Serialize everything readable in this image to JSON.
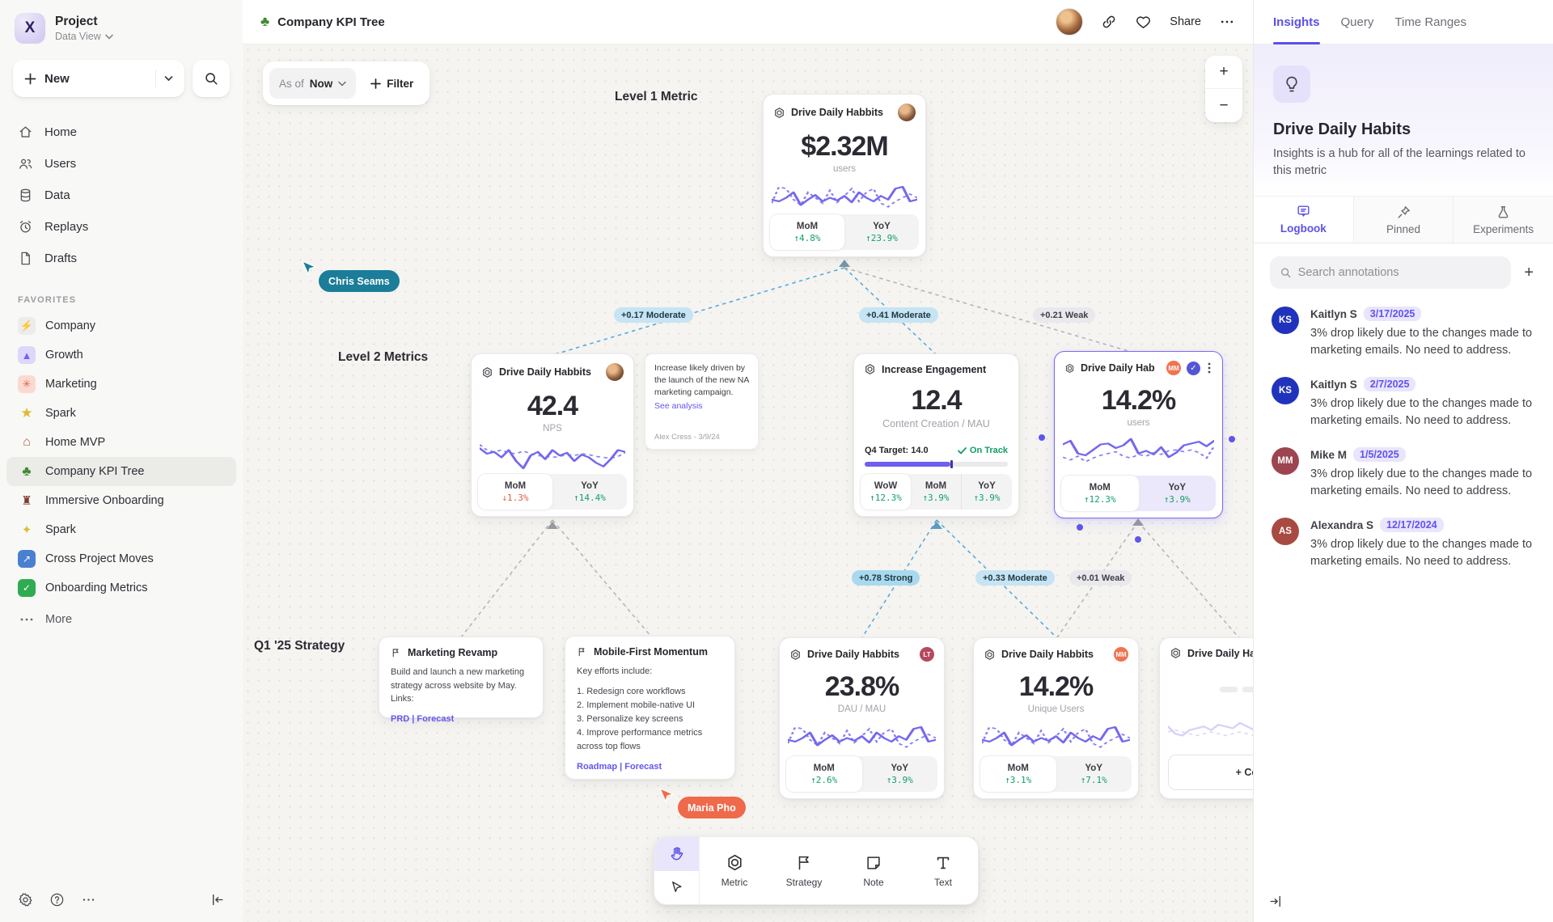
{
  "colors": {
    "accent": "#5b51e8",
    "spark": "#7468ee",
    "green": "#13a06a",
    "red": "#e05c41",
    "teal": "#1b7d99",
    "coral": "#ee6a4b"
  },
  "sidebar": {
    "project_name": "Project",
    "project_view": "Data View",
    "new_label": "New",
    "nav": [
      {
        "label": "Home"
      },
      {
        "label": "Users"
      },
      {
        "label": "Data"
      },
      {
        "label": "Replays"
      },
      {
        "label": "Drafts"
      }
    ],
    "favorites_header": "FAVORITES",
    "favorites": [
      {
        "label": "Company",
        "glyph": "⚡"
      },
      {
        "label": "Growth",
        "glyph": "▲"
      },
      {
        "label": "Marketing",
        "glyph": "✳"
      },
      {
        "label": "Spark",
        "glyph": "★"
      },
      {
        "label": "Home MVP",
        "glyph": "⌂"
      },
      {
        "label": "Company KPI Tree",
        "glyph": "♣"
      },
      {
        "label": "Immersive Onboarding",
        "glyph": "♜"
      },
      {
        "label": "Spark",
        "glyph": "✦"
      },
      {
        "label": "Cross Project Moves",
        "glyph": "↗"
      },
      {
        "label": "Onboarding Metrics",
        "glyph": "✓"
      }
    ],
    "more_label": "More"
  },
  "header": {
    "title": "Company KPI Tree",
    "tree_glyph": "♣",
    "share_label": "Share"
  },
  "canvas": {
    "asof_label": "As of",
    "asof_value": "Now",
    "filter_label": "Filter",
    "zoom_in": "+",
    "zoom_out": "−",
    "level1_label": "Level 1 Metric",
    "level2_label": "Level 2 Metrics",
    "level3_label": "Q1 '25 Strategy",
    "cursors": [
      {
        "name": "Chris Seams"
      },
      {
        "name": "Maria Pho"
      }
    ],
    "edges": [
      {
        "label": "+0.17 Moderate"
      },
      {
        "label": "+0.41 Moderate"
      },
      {
        "label": "+0.21 Weak"
      },
      {
        "label": "+0.78 Strong"
      },
      {
        "label": "+0.33 Moderate"
      },
      {
        "label": "+0.01 Weak"
      }
    ],
    "card_l1": {
      "title": "Drive Daily Habbits",
      "value": "$2.32M",
      "unit": "users",
      "stats": [
        {
          "label": "MoM",
          "value": "↑4.8%"
        },
        {
          "label": "YoY",
          "value": "↑23.9%"
        }
      ],
      "spark": {
        "solid": [
          22,
          24,
          20,
          14,
          28,
          22,
          17,
          24,
          20,
          23,
          18,
          25,
          14,
          20,
          24,
          18,
          22,
          10,
          8,
          24,
          22
        ],
        "dotted": [
          26,
          8,
          10,
          22,
          28,
          14,
          20,
          26,
          12,
          25,
          18,
          10,
          24,
          14,
          10,
          26,
          30,
          24,
          20,
          16,
          20
        ]
      }
    },
    "card_nps": {
      "title": "Drive Daily Habbits",
      "value": "42.4",
      "unit": "NPS",
      "stats": [
        {
          "label": "MoM",
          "value": "↓1.3%"
        },
        {
          "label": "YoY",
          "value": "↑14.4%"
        }
      ],
      "spark": {
        "solid": [
          10,
          16,
          14,
          20,
          12,
          24,
          32,
          18,
          14,
          22,
          12,
          18,
          15,
          24,
          17,
          20,
          26,
          30,
          22,
          12,
          14
        ],
        "dotted": [
          6,
          12,
          14,
          12,
          15,
          16,
          13,
          16,
          18,
          19,
          20,
          19,
          17,
          18,
          16,
          17,
          19,
          20,
          21,
          19,
          15
        ]
      }
    },
    "note": {
      "text": "Increase likely driven by the launch of the new NA marketing campaign.",
      "link": "See analysis",
      "author": "Alex Cress - 3/9/24"
    },
    "card_eng": {
      "title": "Increase Engagement",
      "value": "12.4",
      "unit": "Content Creation / MAU",
      "target_label": "Q4 Target: 14.0",
      "status": "On Track",
      "progress_pct": 60,
      "stats": [
        {
          "label": "WoW",
          "value": "↑12.3%"
        },
        {
          "label": "MoM",
          "value": "↑3.9%"
        },
        {
          "label": "YoY",
          "value": "↑3.9%"
        }
      ]
    },
    "card_sel": {
      "title": "Drive Daily Habb..",
      "badge": "MM",
      "value": "14.2%",
      "unit": "users",
      "stats": [
        {
          "label": "MoM",
          "value": "↑12.3%"
        },
        {
          "label": "YoY",
          "value": "↑3.9%"
        }
      ],
      "spark": {
        "solid": [
          12,
          8,
          22,
          24,
          18,
          12,
          11,
          16,
          13,
          6,
          22,
          19,
          23,
          15,
          26,
          21,
          13,
          11,
          9,
          14,
          8
        ],
        "dotted": [
          26,
          29,
          25,
          31,
          27,
          24,
          22,
          20,
          25,
          27,
          23,
          25,
          21,
          23,
          19,
          18,
          20,
          18,
          21,
          27,
          14
        ]
      }
    },
    "strat_mkt": {
      "title": "Marketing Revamp",
      "body": "Build and launch a new marketing strategy across website by May. Links:",
      "links": "PRD | Forecast"
    },
    "strat_mob": {
      "title": "Mobile-First Momentum",
      "intro": "Key efforts include:",
      "items": [
        "1. Redesign core workflows",
        "2. Implement mobile-native UI",
        "3. Personalize key screens",
        "4. Improve performance metrics across top flows"
      ],
      "links": "Roadmap | Forecast"
    },
    "card_dau": {
      "title": "Drive Daily Habbits",
      "badge": "LT",
      "value": "23.8%",
      "unit": "DAU / MAU",
      "stats": [
        {
          "label": "MoM",
          "value": "↑2.6%"
        },
        {
          "label": "YoY",
          "value": "↑3.9%"
        }
      ],
      "spark": {
        "solid": [
          22,
          24,
          20,
          14,
          28,
          22,
          17,
          24,
          20,
          23,
          18,
          25,
          14,
          20,
          24,
          18,
          22,
          10,
          8,
          24,
          22
        ],
        "dotted": [
          26,
          8,
          10,
          22,
          28,
          14,
          20,
          26,
          12,
          25,
          18,
          10,
          24,
          14,
          10,
          26,
          30,
          24,
          20,
          16,
          20
        ]
      }
    },
    "card_uu": {
      "title": "Drive Daily Habbits",
      "badge": "MM",
      "value": "14.2%",
      "unit": "Unique Users",
      "stats": [
        {
          "label": "MoM",
          "value": "↑3.1%"
        },
        {
          "label": "YoY",
          "value": "↑7.1%"
        }
      ],
      "spark": {
        "solid": [
          22,
          24,
          20,
          14,
          28,
          22,
          17,
          24,
          20,
          23,
          18,
          25,
          14,
          20,
          24,
          18,
          22,
          10,
          8,
          24,
          22
        ],
        "dotted": [
          26,
          8,
          10,
          22,
          28,
          14,
          20,
          26,
          12,
          25,
          18,
          10,
          24,
          14,
          10,
          26,
          30,
          24,
          20,
          16,
          20
        ]
      }
    },
    "card_partial": {
      "title": "Drive Daily Habbits",
      "connect_label": "+ Connect",
      "spark": {
        "color": "#cdc7f5",
        "solid": [
          18,
          26,
          28,
          22,
          20,
          18,
          22,
          16,
          18,
          20,
          14,
          18,
          22,
          16,
          20,
          26,
          14,
          12,
          20,
          24,
          18
        ],
        "dotted": [
          24,
          22,
          24,
          26,
          28,
          26,
          24,
          26,
          28,
          26,
          24,
          26,
          28,
          26,
          24,
          22,
          24,
          26,
          24,
          22,
          24
        ]
      }
    }
  },
  "toolbar": {
    "tools": [
      {
        "label": "Metric"
      },
      {
        "label": "Strategy"
      },
      {
        "label": "Note"
      },
      {
        "label": "Text"
      }
    ]
  },
  "panel": {
    "tabs": [
      {
        "label": "Insights"
      },
      {
        "label": "Query"
      },
      {
        "label": "Time Ranges"
      }
    ],
    "hero_title": "Drive Daily Habits",
    "hero_desc": "Insights is a hub for all of the learnings related to this metric",
    "subtabs": [
      {
        "label": "Logbook"
      },
      {
        "label": "Pinned"
      },
      {
        "label": "Experiments"
      }
    ],
    "search_placeholder": "Search annotations",
    "annotations": [
      {
        "initials": "KS",
        "name": "Kaitlyn S",
        "date": "3/17/2025",
        "text": "3% drop likely due to the changes made to marketing emails. No need to address."
      },
      {
        "initials": "KS",
        "name": "Kaitlyn S",
        "date": "2/7/2025",
        "text": "3% drop likely due to the changes made to marketing emails. No need to address."
      },
      {
        "initials": "MM",
        "name": "Mike M",
        "date": "1/5/2025",
        "text": "3% drop likely due to the changes made to marketing emails. No need to address."
      },
      {
        "initials": "AS",
        "name": "Alexandra S",
        "date": "12/17/2024",
        "text": "3% drop likely due to the changes made to marketing emails. No need to address."
      }
    ]
  }
}
